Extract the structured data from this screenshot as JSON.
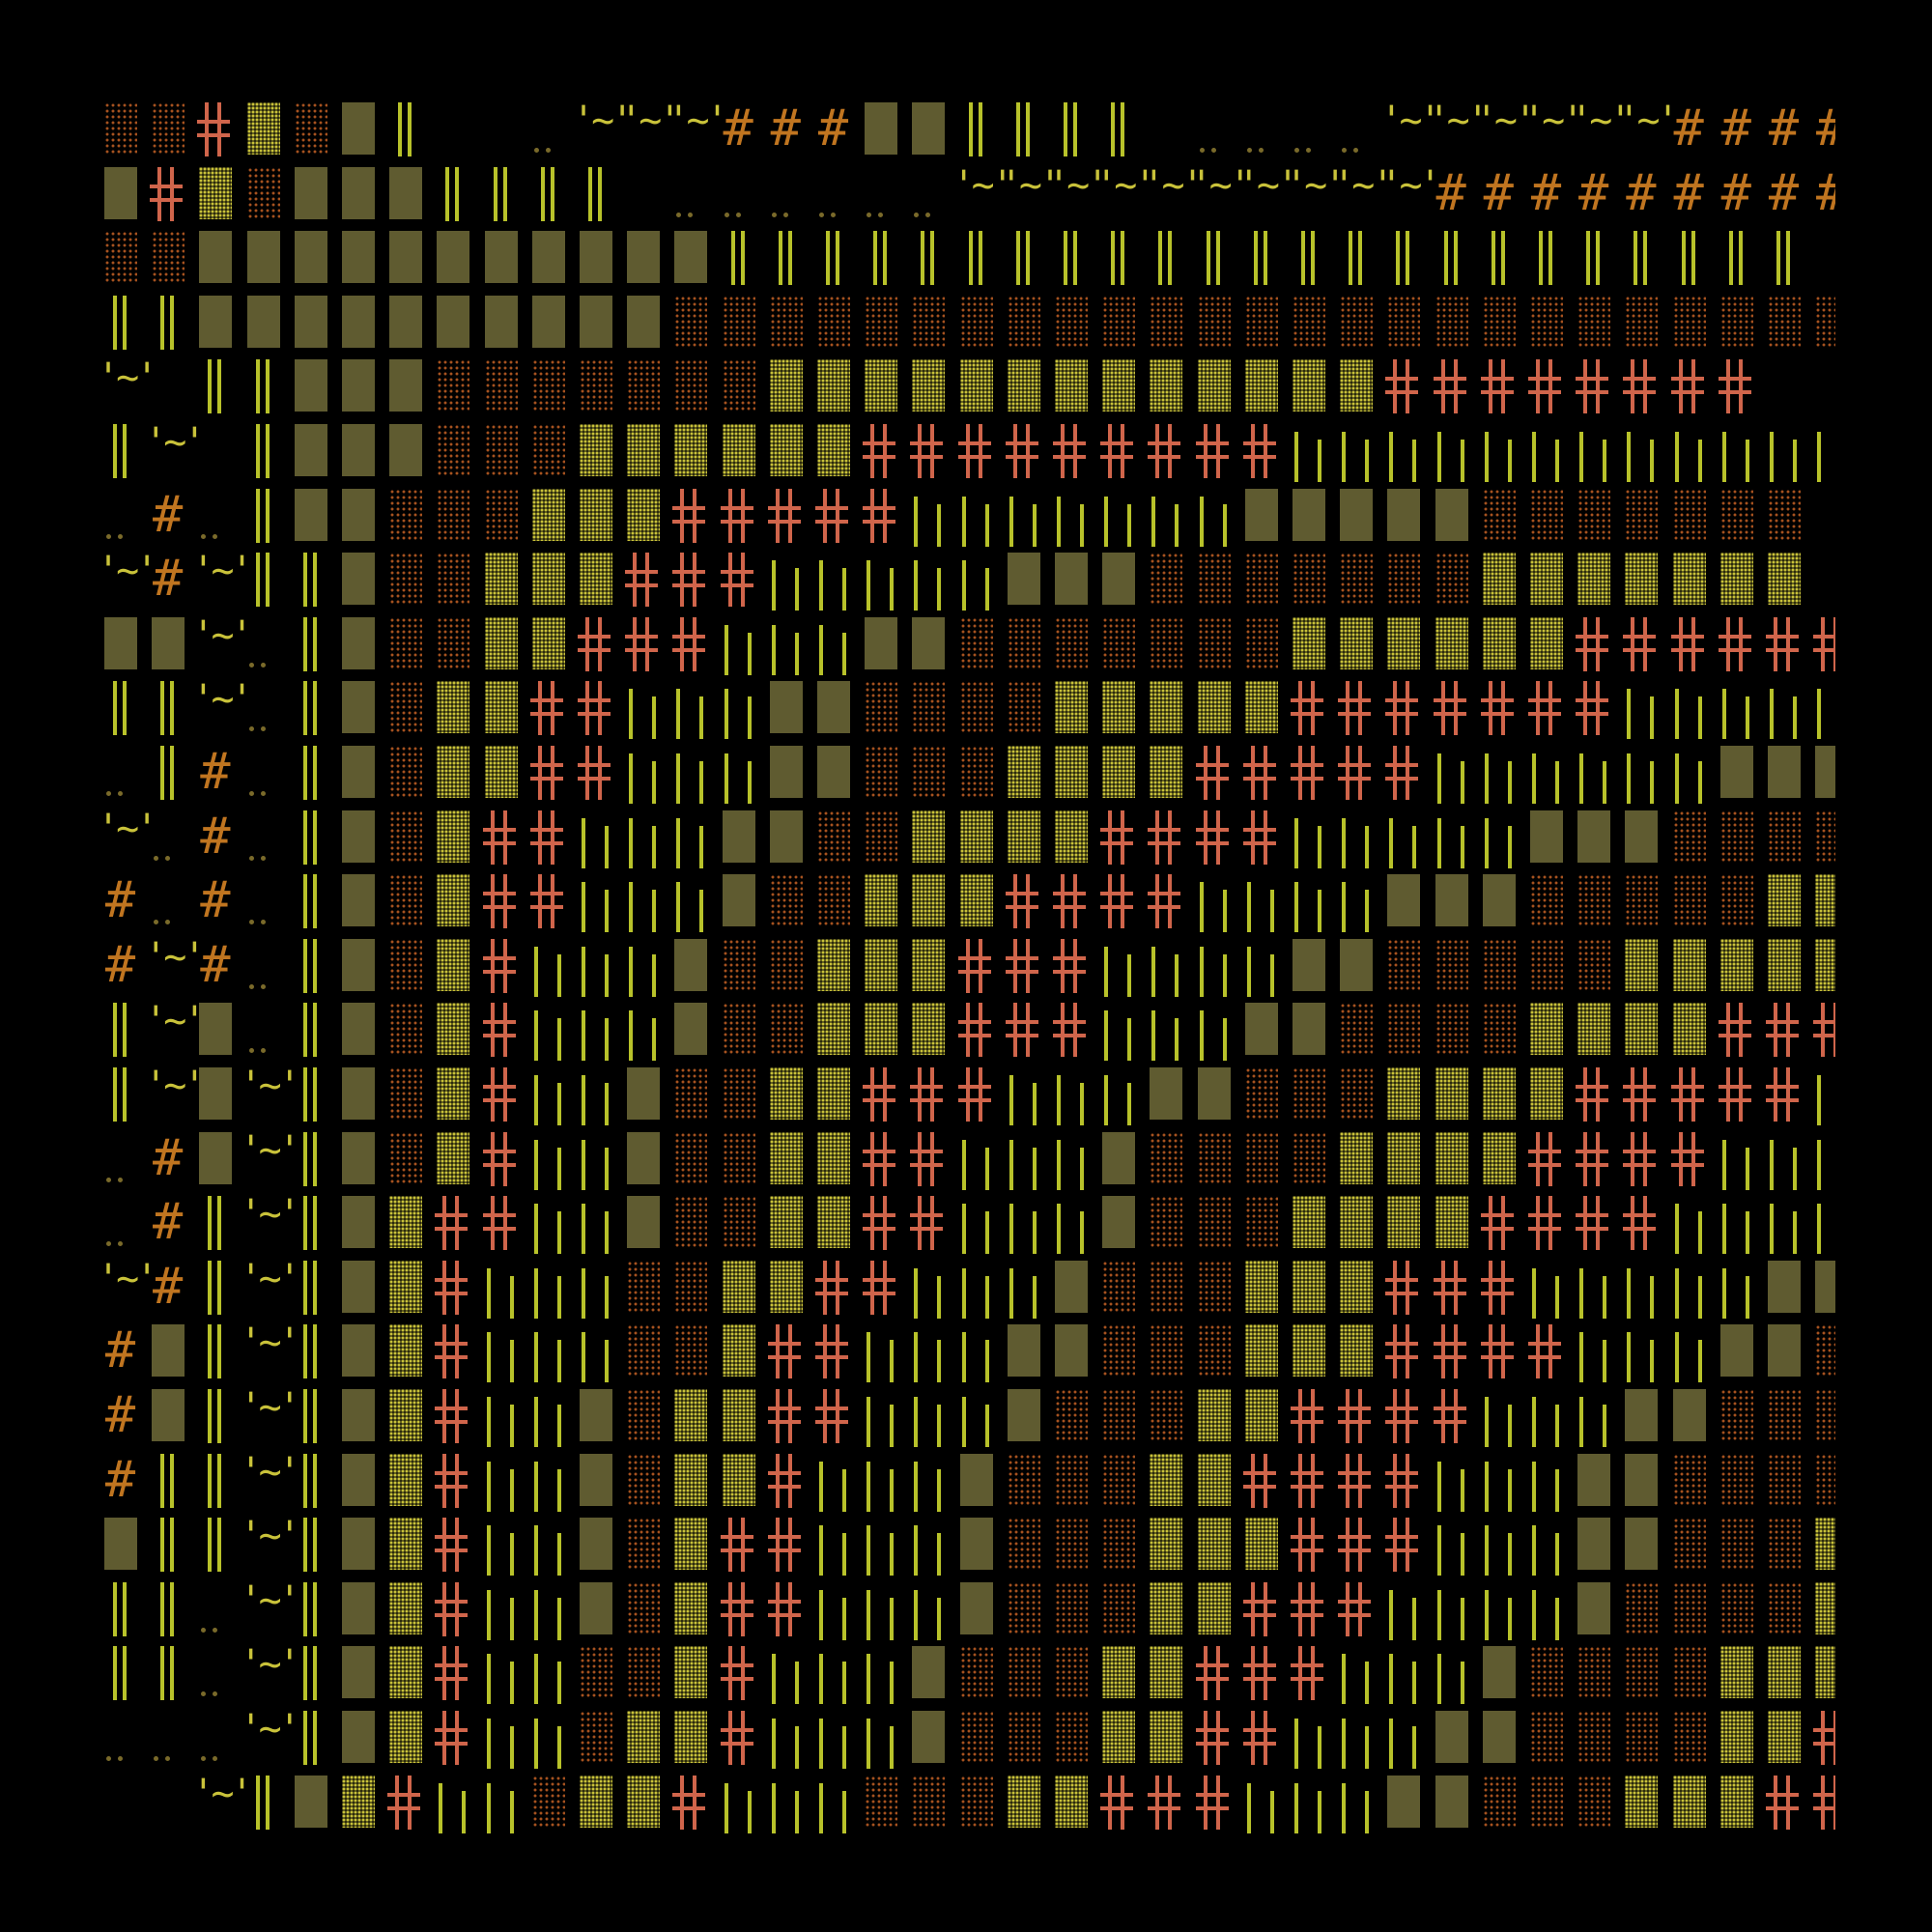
{
  "palette": {
    "background": "#000000",
    "solid_block": "#5f5b30",
    "light_shade": "#c9c23a",
    "dots_shade": "#a6521f",
    "cross": "#d0654b",
    "bars": "#b8c22a",
    "hash": "#c07520",
    "tilde": "#c9c23a"
  },
  "legend": {
    "D": "dots-shade",
    "L": "light-shade",
    "S": "solid-block",
    "X": "box-cross",
    "V": "double-bar",
    "B": "broken-bars",
    "H": "hash",
    "P": "double-dot",
    "T": "tilde",
    "_": "blank"
  },
  "glyphs": {
    "hash": "#",
    "tilde": "'~'"
  },
  "rows": [
    "DDXLDSV__PTTTHHHSSVVVV_PPPPTTTTTTHHHHHHHH",
    "SXLDSSSVVVV_PPPPPPTTTTTTTTTTHHHHHHHHHH",
    "DDSSSSSSSSSSSVVVVVVVVVVVVVVVVVVVVVVV",
    "VVSSSSSSSSSSDDDDDDDDDDDDDDDDDDDDDDDDDDDD",
    "T_VVSSSDDDDDDDLLLLLLLLLLLLLXXXXXXXX",
    "VT_VSSSDDDLLLLLLXXXXXXXXXBBBBBBBBBBBB",
    "PHPVSSDDDLLLXXXXXBBBBBBBSSSSSDDDDDDD",
    "THTVVSDDLLLXXXBBBBBSSSDDDDDDDLLLLLLL",
    "SSTPVSDDLLXXXBBBSSDDDDDDDLLLLLLXXXXXXX",
    "VVTPVSDLLXXBBBSSDDDDLLLLLXXXXXXXBBBBB",
    "PVHPVSDLLXXBBBSSDDDLLLLXXXXXBBBBBBSSSS",
    "TPHPVSDLXXBBBSSDDLLLLXXXXBBBBBSSSDDDD",
    "HPHPVSDLXXBBBSDDLLLXXXXBBBBSSSDDDDDLLL",
    "HTHPVSDLXBBBSDDLLLXXXBBBBSSDDDDDLLLLL",
    "VTSPVSDLXBBBSDDLLLXXXBBBSSDDDDLLLLXXXX",
    "VTSTVSDLXBBSDDLLXXXBBBSSDDDLLLLXXXXXB",
    "PHSTVSDLXBBSDDLLXXBBBSDDDDLLLLXXXXBBB",
    "PHVTVSLXXBBSDDLLXXBBBSDDDLLLLXXXXBBBBB",
    "THVTVSLXBBBDDLLXXBBBSDDDLLLXXXBBBBBSSD",
    "HSVTVSLXBBBDDLXXBBBSSDDDLLLXXXXBBBSSDD",
    "HSVTVSLXBBSDLLXXBBBSDDDLLXXXXBBBSSDDDD",
    "HVVTVSLXBBSDLLXBBBSDDDLLXXXXBBBSSDDDDL",
    "SVVTVSLXBBSDLXXBBBSDDDLLLXXXBBBSSDDDLLL",
    "VVPTVSLXBBSDLXXBBBSDDDLLXXXBBBBSDDDDLLLX",
    "VVPTVSLXBBDDLXBBBSDDDLLXXXBBBSDDDDLLLXX",
    "PPPTVSLXBBDLLXBBBSDDDLLXXBBBSSDDDDLLXXX",
    "__TVSLXBBDLLXBBBDDDLLXXXBBBSSDDDLLLXXXXB"
  ]
}
